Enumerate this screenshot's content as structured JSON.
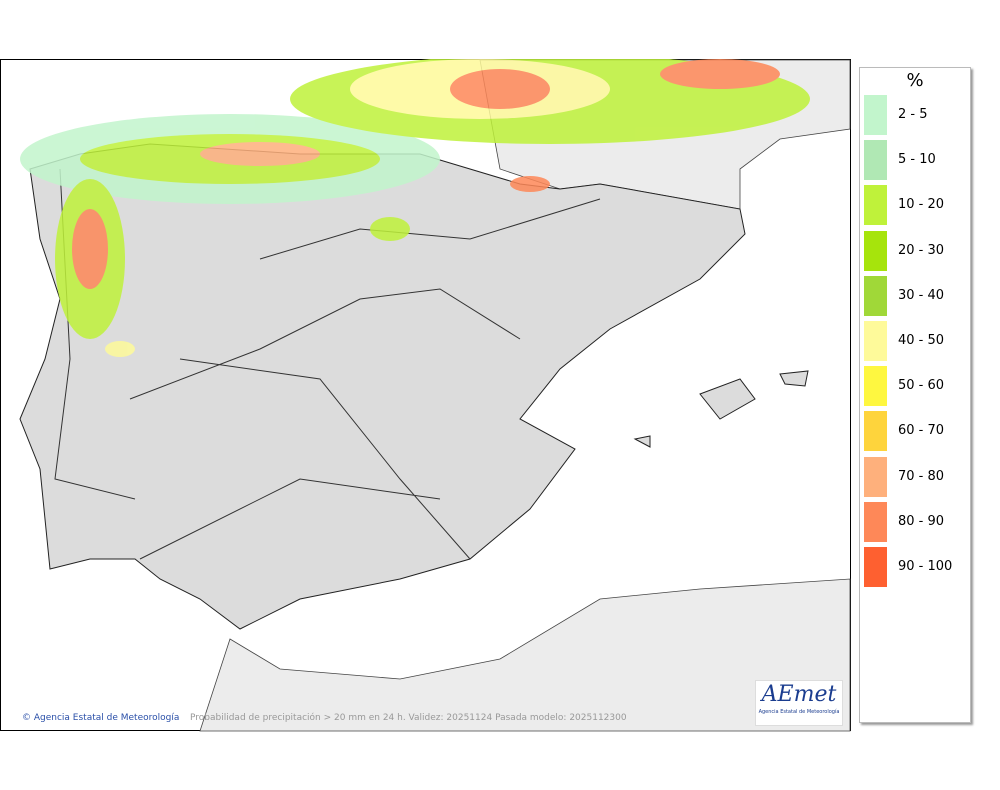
{
  "legend": {
    "title": "%",
    "items": [
      {
        "label": "2 - 5",
        "color": "#c2f5cc"
      },
      {
        "label": "5 - 10",
        "color": "#b0e8b4"
      },
      {
        "label": "10 - 20",
        "color": "#bff23a"
      },
      {
        "label": "20 - 30",
        "color": "#a6e40c"
      },
      {
        "label": "30 - 40",
        "color": "#a0d838"
      },
      {
        "label": "40 - 50",
        "color": "#fefa9a"
      },
      {
        "label": "50 - 60",
        "color": "#fef740"
      },
      {
        "label": "60 - 70",
        "color": "#fed43c"
      },
      {
        "label": "70 - 80",
        "color": "#feb07c"
      },
      {
        "label": "80 - 90",
        "color": "#fe8858"
      },
      {
        "label": "90 - 100",
        "color": "#fe6030"
      }
    ]
  },
  "footer": {
    "agency": "Agencia Estatal de Meteorología",
    "caption": "Probabilidad de precipitación > 20 mm en 24 h. Validez: 20251124 Pasada modelo: 2025112300"
  },
  "logo": {
    "name": "AEmet",
    "subtitle": "Agencia Estatal de Meteorología"
  }
}
